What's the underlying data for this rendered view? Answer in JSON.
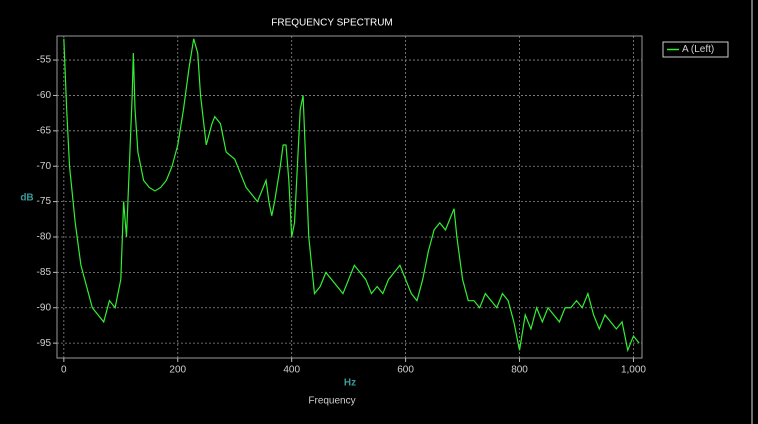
{
  "chart_data": {
    "type": "line",
    "title": "FREQUENCY SPECTRUM",
    "x_label": "Frequency",
    "x_unit": "Hz",
    "y_label": "dB",
    "x": [
      0,
      5,
      10,
      20,
      30,
      40,
      50,
      60,
      70,
      80,
      90,
      100,
      105,
      110,
      115,
      120,
      122,
      125,
      130,
      140,
      150,
      160,
      170,
      180,
      190,
      200,
      210,
      220,
      228,
      235,
      240,
      250,
      260,
      265,
      275,
      285,
      300,
      310,
      320,
      330,
      340,
      350,
      355,
      360,
      365,
      370,
      380,
      385,
      390,
      395,
      400,
      405,
      410,
      415,
      420,
      425,
      430,
      440,
      450,
      460,
      470,
      480,
      490,
      500,
      510,
      520,
      530,
      540,
      550,
      560,
      570,
      580,
      590,
      600,
      610,
      620,
      630,
      640,
      650,
      660,
      670,
      680,
      685,
      690,
      700,
      710,
      720,
      730,
      740,
      750,
      760,
      770,
      780,
      790,
      800,
      810,
      820,
      830,
      840,
      850,
      860,
      870,
      880,
      890,
      900,
      910,
      920,
      930,
      940,
      950,
      960,
      970,
      980,
      990,
      1000,
      1010
    ],
    "series": [
      {
        "name": "A (Left)",
        "color": "#33ee33",
        "values": [
          -52,
          -62,
          -70,
          -78,
          -84,
          -87,
          -90,
          -91,
          -92,
          -89,
          -90,
          -86,
          -75,
          -80,
          -70,
          -60,
          -54,
          -62,
          -68,
          -72,
          -73,
          -73.5,
          -73,
          -72,
          -70,
          -67,
          -62,
          -56,
          -52,
          -54,
          -60,
          -67,
          -64,
          -63,
          -64,
          -68,
          -69,
          -71,
          -73,
          -74,
          -75,
          -73,
          -72,
          -75,
          -77,
          -75,
          -70,
          -67,
          -67,
          -72,
          -80,
          -78,
          -70,
          -62,
          -60,
          -70,
          -80,
          -88,
          -87,
          -85,
          -86,
          -87,
          -88,
          -86,
          -84,
          -85,
          -86,
          -88,
          -87,
          -88,
          -86,
          -85,
          -84,
          -86,
          -88,
          -89,
          -86,
          -82,
          -79,
          -78,
          -79,
          -77,
          -76,
          -80,
          -86,
          -89,
          -89,
          -90,
          -88,
          -89,
          -90,
          -88,
          -89,
          -92,
          -96,
          -91,
          -93,
          -90,
          -92,
          -90,
          -91,
          -92,
          -90,
          -90,
          -89,
          -90,
          -88,
          -91,
          -93,
          -91,
          -92,
          -93,
          -92,
          -96,
          -94,
          -95
        ]
      }
    ],
    "xlim": [
      -12,
      1015
    ],
    "ylim": [
      -97.1,
      -51.6
    ],
    "xticks": [
      0,
      200,
      400,
      600,
      800,
      {
        "value": 1000,
        "label": "1,000"
      }
    ],
    "yticks": [
      -55,
      -60,
      -65,
      -70,
      -75,
      -80,
      -85,
      -90,
      -95
    ],
    "grid": true,
    "legend": "outside-right"
  }
}
